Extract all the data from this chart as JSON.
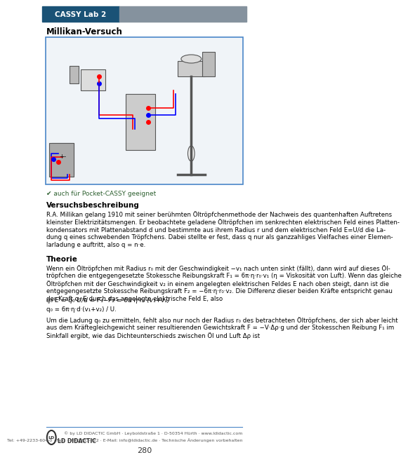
{
  "header_text": "CASSY Lab 2",
  "header_bg_dark": "#1a5276",
  "header_bg_light": "#85929e",
  "page_bg": "#ffffff",
  "title": "Millikan-Versuch",
  "diagram_border_color": "#4a86c8",
  "section_title_1": "Versuchsbeschreibung",
  "body_text_1": "R.A. Millikan gelang 1910 mit seiner berühmten Öltröpfchenmethode der Nachweis des quantenhaften Auftretens\nkleinster Elektrizitätsmengen. Er beobachtete geladene Öltröpfchen im senkrechten elektrischen Feld eines Platten-\nkondensators mit Plattenabstand d und bestimmte aus ihrem Radius r und dem elektrischen Feld E=U/d die La-\ndung q eines schwebenden Tröpfchens. Dabei stellte er fest, dass q nur als ganzzahliges Vielfaches einer Elemen-\nlarladung e auftritt, also q = n·e.",
  "section_title_2": "Theorie",
  "body_text_2": "Wenn ein Öltröpfchen mit Radius r₀ mit der Geschwindigkeit −v₁ nach unten sinkt (fällt), dann wird auf dieses Öl-\ntröpfchen die entgegengesetzte Stokessche Reibungskraft F₁ = 6π·η·r₀·v₁ (η = Viskosität von Luft). Wenn das gleiche\nÖltröpfchen mit der Geschwindigkeit v₂ in einem angelegten elektrischen Feldes E nach oben steigt, dann ist die\nentgegengesetzte Stokessche Reibungskraft F₂ = −6π·η·r₀·v₂. Die Differenz dieser beiden Kräfte entspricht genau\nder Kraft q₀·E durch das angelegte elektrische Feld E, also",
  "formula_1": "q₀·E = q₀·U/d = F₁−F₂ = 6π·η·r₀·(v₁+v₂)",
  "body_text_3": "q₀ = 6π·η·d·(v₁+v₂) / U.",
  "body_text_4": "Um die Ladung q₀ zu ermitteln, fehlt also nur noch der Radius r₀ des betrachteten Öltröpfchens, der sich aber leicht\naus dem Kräftegleichgewicht seiner resultierenden Gewichtskraft F = −V·Δρ·g und der Stokesschen Reibung F₁ im\nSinkfall ergibt, wie das Dichteunterschieds zwischen Öl und Luft Δρ ist",
  "footer_logo_text": "LD DIDACTIC",
  "footer_copyright": "© by LD DIDACTIC GmbH · Leyboldstraße 1 · D-50354 Hürth · www.ldidactic.com\nTel: +49-2233-604-0 · Fax: +49-2233-222 · E-Mail: info@ldidactic.de · Technische Änderungen vorbehalten",
  "footer_page": "280",
  "also_text": "✔ auch für Pocket-CASSY geeignet",
  "icon_color": "#4a7c3f"
}
